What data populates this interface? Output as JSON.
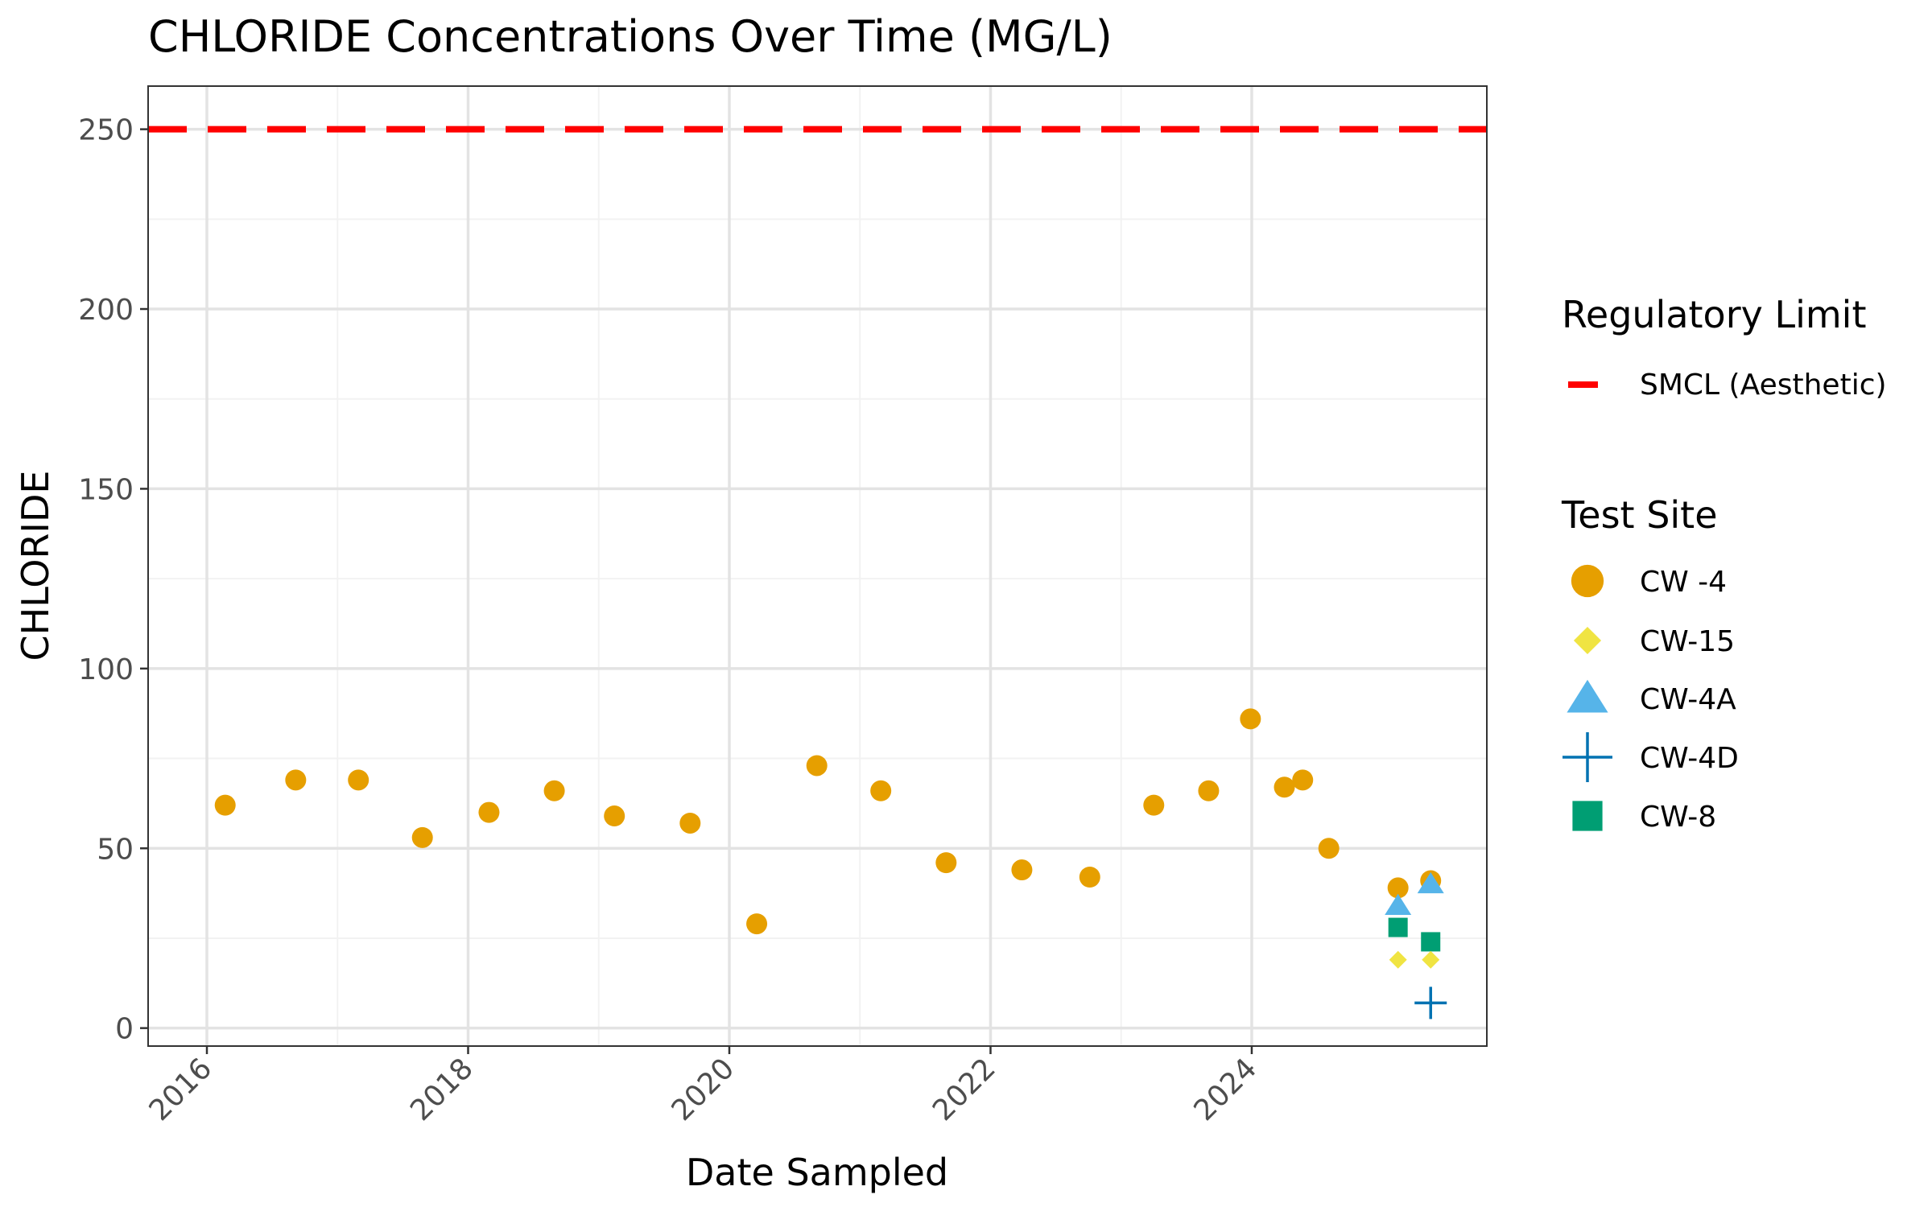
{
  "chart_data": {
    "type": "scatter",
    "title": "CHLORIDE Concentrations Over Time (MG/L)",
    "xlabel": "Date Sampled",
    "ylabel": "CHLORIDE",
    "xlim": [
      2015.55,
      2025.8
    ],
    "ylim": [
      -5,
      262
    ],
    "x_ticks": [
      2016,
      2018,
      2020,
      2022,
      2024
    ],
    "y_ticks": [
      0,
      50,
      100,
      150,
      200,
      250
    ],
    "grid": true,
    "reference_lines": [
      {
        "name": "SMCL (Aesthetic)",
        "y": 250,
        "color": "#ff0000",
        "style": "dashed"
      }
    ],
    "legends": [
      {
        "title": "Regulatory Limit",
        "entries": [
          {
            "label": "SMCL (Aesthetic)",
            "symbol": "dash",
            "color": "#ff0000"
          }
        ]
      },
      {
        "title": "Test Site",
        "entries": [
          {
            "label": "CW -4",
            "symbol": "circle",
            "color": "#E69F00"
          },
          {
            "label": "CW-15",
            "symbol": "diamond",
            "color": "#F0E442"
          },
          {
            "label": "CW-4A",
            "symbol": "triangle",
            "color": "#56B4E9"
          },
          {
            "label": "CW-4D",
            "symbol": "plus",
            "color": "#0072B2"
          },
          {
            "label": "CW-8",
            "symbol": "square",
            "color": "#009E73"
          }
        ]
      }
    ],
    "series": [
      {
        "name": "CW -4",
        "symbol": "circle",
        "color": "#E69F00",
        "points": [
          [
            2016.14,
            62
          ],
          [
            2016.68,
            69
          ],
          [
            2017.16,
            69
          ],
          [
            2017.65,
            53
          ],
          [
            2018.16,
            60
          ],
          [
            2018.66,
            66
          ],
          [
            2019.12,
            59
          ],
          [
            2019.7,
            57
          ],
          [
            2020.21,
            29
          ],
          [
            2020.67,
            73
          ],
          [
            2021.16,
            66
          ],
          [
            2021.66,
            46
          ],
          [
            2022.24,
            44
          ],
          [
            2022.76,
            42
          ],
          [
            2023.25,
            62
          ],
          [
            2023.67,
            66
          ],
          [
            2023.99,
            86
          ],
          [
            2024.25,
            67
          ],
          [
            2024.39,
            69
          ],
          [
            2024.59,
            50
          ],
          [
            2025.12,
            39
          ],
          [
            2025.37,
            41
          ]
        ]
      },
      {
        "name": "CW-15",
        "symbol": "diamond",
        "color": "#F0E442",
        "points": [
          [
            2025.12,
            19
          ],
          [
            2025.37,
            19
          ]
        ]
      },
      {
        "name": "CW-4A",
        "symbol": "triangle",
        "color": "#56B4E9",
        "points": [
          [
            2025.12,
            34
          ],
          [
            2025.37,
            40
          ]
        ]
      },
      {
        "name": "CW-4D",
        "symbol": "plus",
        "color": "#0072B2",
        "points": [
          [
            2025.37,
            7
          ]
        ]
      },
      {
        "name": "CW-8",
        "symbol": "square",
        "color": "#009E73",
        "points": [
          [
            2025.12,
            28
          ],
          [
            2025.37,
            24
          ]
        ]
      }
    ]
  }
}
